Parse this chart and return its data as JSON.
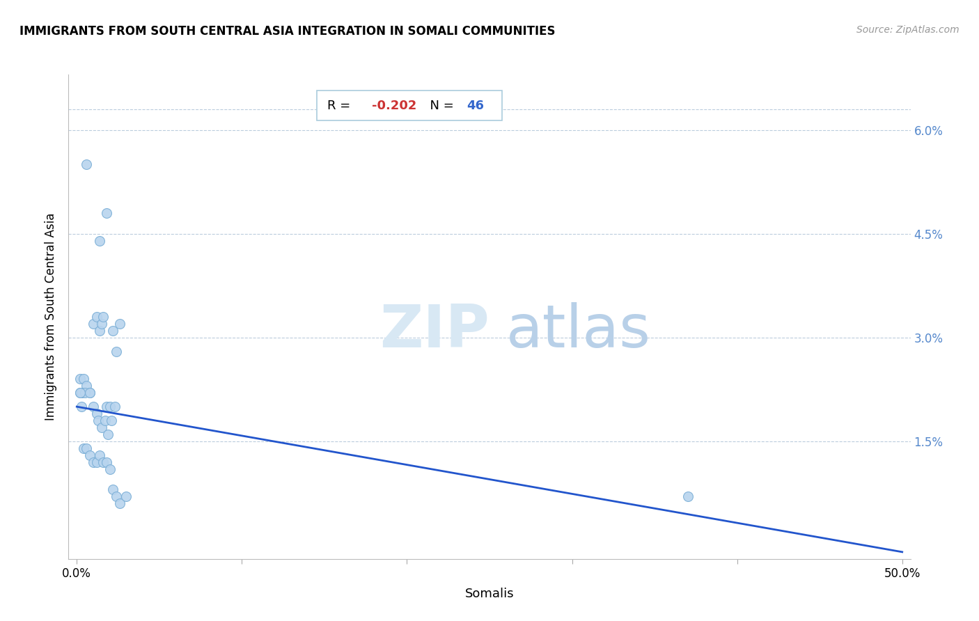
{
  "title": "IMMIGRANTS FROM SOUTH CENTRAL ASIA INTEGRATION IN SOMALI COMMUNITIES",
  "source": "Source: ZipAtlas.com",
  "xlabel": "Somalis",
  "ylabel": "Immigrants from South Central Asia",
  "r_value": -0.202,
  "n_value": 46,
  "x_ticks": [
    0.0,
    0.1,
    0.2,
    0.3,
    0.4,
    0.5
  ],
  "x_tick_labels": [
    "0.0%",
    "",
    "",
    "",
    "",
    "50.0%"
  ],
  "y_ticks": [
    0.0,
    0.015,
    0.03,
    0.045,
    0.06
  ],
  "y_tick_labels": [
    "",
    "1.5%",
    "3.0%",
    "4.5%",
    "6.0%"
  ],
  "xlim": [
    -0.005,
    0.505
  ],
  "ylim": [
    -0.002,
    0.068
  ],
  "scatter_x": [
    0.006,
    0.018,
    0.002,
    0.002,
    0.003,
    0.004,
    0.006,
    0.008,
    0.01,
    0.012,
    0.014,
    0.015,
    0.016,
    0.018,
    0.02,
    0.022,
    0.024,
    0.026,
    0.003,
    0.005,
    0.008,
    0.01,
    0.012,
    0.013,
    0.015,
    0.017,
    0.019,
    0.021,
    0.023,
    0.002,
    0.003,
    0.004,
    0.006,
    0.008,
    0.01,
    0.012,
    0.014,
    0.016,
    0.018,
    0.02,
    0.022,
    0.024,
    0.026,
    0.03,
    0.37,
    0.014
  ],
  "scatter_y": [
    0.055,
    0.048,
    0.024,
    0.022,
    0.022,
    0.024,
    0.023,
    0.022,
    0.032,
    0.033,
    0.031,
    0.032,
    0.033,
    0.02,
    0.02,
    0.031,
    0.028,
    0.032,
    0.022,
    0.022,
    0.022,
    0.02,
    0.019,
    0.018,
    0.017,
    0.018,
    0.016,
    0.018,
    0.02,
    0.022,
    0.02,
    0.014,
    0.014,
    0.013,
    0.012,
    0.012,
    0.013,
    0.012,
    0.012,
    0.011,
    0.008,
    0.007,
    0.006,
    0.007,
    0.007,
    0.044
  ],
  "dot_color": "#b8d4ee",
  "dot_edge_color": "#7aaed6",
  "line_color": "#2255cc",
  "line_start_x": 0.0,
  "line_start_y": 0.02,
  "line_end_x": 0.5,
  "line_end_y": -0.001,
  "annotation_r_color": "#cc3333",
  "annotation_n_color": "#3366cc",
  "background_color": "#ffffff",
  "grid_color": "#bbccdd"
}
